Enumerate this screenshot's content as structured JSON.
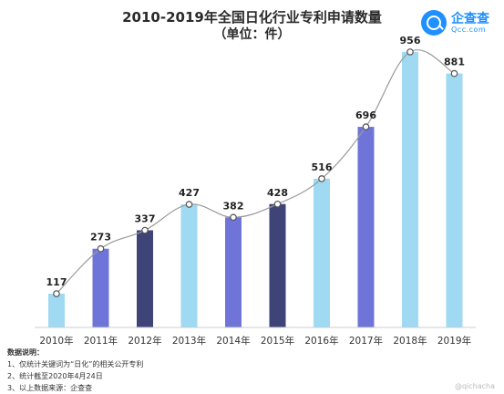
{
  "header": {
    "title": "2010-2019年全国日化行业专利申请数量",
    "subtitle": "（单位：件）"
  },
  "logo": {
    "name": "企查查",
    "domain": "Qcc.com",
    "icon": "magnifier-icon",
    "color": "#1e90ff"
  },
  "chart_data": {
    "type": "bar",
    "title": "2010-2019年全国日化行业专利申请数量",
    "subtitle": "（单位：件）",
    "categories": [
      "2010年",
      "2011年",
      "2012年",
      "2013年",
      "2014年",
      "2015年",
      "2016年",
      "2017年",
      "2018年",
      "2019年"
    ],
    "values": [
      117,
      273,
      337,
      427,
      382,
      428,
      516,
      696,
      956,
      881
    ],
    "bar_colors": [
      "#9fd9f2",
      "#6f75d8",
      "#3e4378",
      "#9fd9f2",
      "#6f75d8",
      "#3e4378",
      "#9fd9f2",
      "#6f75d8",
      "#9fd9f2",
      "#9fd9f2"
    ],
    "overlay": {
      "type": "line",
      "smooth": true,
      "color": "#9a9a9a",
      "marker": "circle"
    },
    "ylim": [
      0,
      1000
    ],
    "grid": false,
    "legend": "none"
  },
  "notes": {
    "heading": "数据说明：",
    "items": [
      "1、仅统计关键词为“日化”的相关公开专利",
      "2、统计截至2020年4月24日",
      "3、以上数据来源：企查查"
    ]
  },
  "watermark": "@qichacha"
}
